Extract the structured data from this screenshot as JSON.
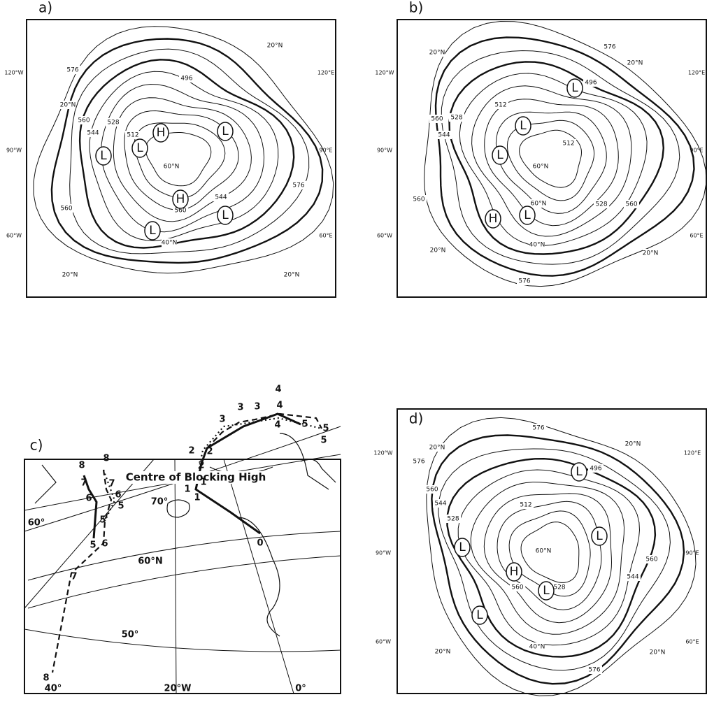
{
  "panels": [
    {
      "label": "a)",
      "side_labels": [
        "120°W",
        "90°W",
        "60°W",
        "120°E",
        "90°E",
        "60°E"
      ],
      "map_labels": [
        "20°N",
        "20°N",
        "20°N",
        "20°N",
        "576",
        "576",
        "560",
        "544",
        "528",
        "512",
        "496",
        "560",
        "60°N",
        "40°N",
        "544",
        "560"
      ],
      "centers": [
        "H",
        "H",
        "L",
        "L",
        "L",
        "L",
        "L"
      ]
    },
    {
      "label": "b)",
      "side_labels": [
        "120°W",
        "90°W",
        "60°W",
        "120°E",
        "90°E",
        "60°E"
      ],
      "map_labels": [
        "20°N",
        "20°N",
        "576",
        "576",
        "560",
        "544",
        "528",
        "512",
        "512",
        "496",
        "560",
        "560",
        "60°N",
        "60°N",
        "528",
        "40°N",
        "20°N",
        "20°N"
      ],
      "centers": [
        "L",
        "L",
        "L",
        "L",
        "H"
      ]
    },
    {
      "label": "c)",
      "title": "Centre of Blocking High",
      "grid_labels": [
        "70°",
        "60°",
        "60°N",
        "50°",
        "40°",
        "20°W",
        "0°"
      ],
      "track_labels": [
        "0",
        "1",
        "1",
        "1",
        "2",
        "2",
        "2",
        "3",
        "3",
        "3",
        "4",
        "4",
        "4",
        "5",
        "5",
        "5",
        "8",
        "8",
        "7",
        "7",
        "6",
        "6",
        "5",
        "5",
        "5",
        "6",
        "7",
        "8"
      ]
    },
    {
      "label": "d)",
      "side_labels": [
        "120°W",
        "90°W",
        "60°W",
        "120°E",
        "90°E",
        "60°E"
      ],
      "map_labels": [
        "576",
        "20°N",
        "20°N",
        "576",
        "560",
        "544",
        "528",
        "512",
        "496",
        "560",
        "544",
        "60°N",
        "40°N",
        "576",
        "20°N",
        "20°N",
        "560",
        "528"
      ],
      "centers": [
        "L",
        "L",
        "L",
        "H",
        "L",
        "L"
      ]
    }
  ]
}
